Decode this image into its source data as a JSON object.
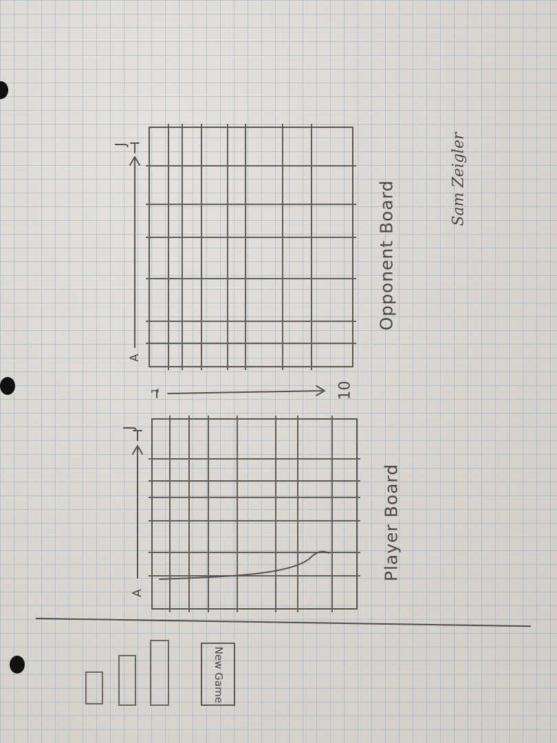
{
  "sketch": {
    "new_game_button": "New Game",
    "player_board_label": "Player Board",
    "opponent_board_label": "Opponent Board",
    "signature": "Sam Zeigler",
    "column_start": "A",
    "column_end": "J",
    "row_start": "1",
    "row_end": "10"
  },
  "colors": {
    "paper": "#d8d6d2",
    "grid": "#7896aa",
    "pencil": "#55524e",
    "binder_hole": "#111111"
  }
}
